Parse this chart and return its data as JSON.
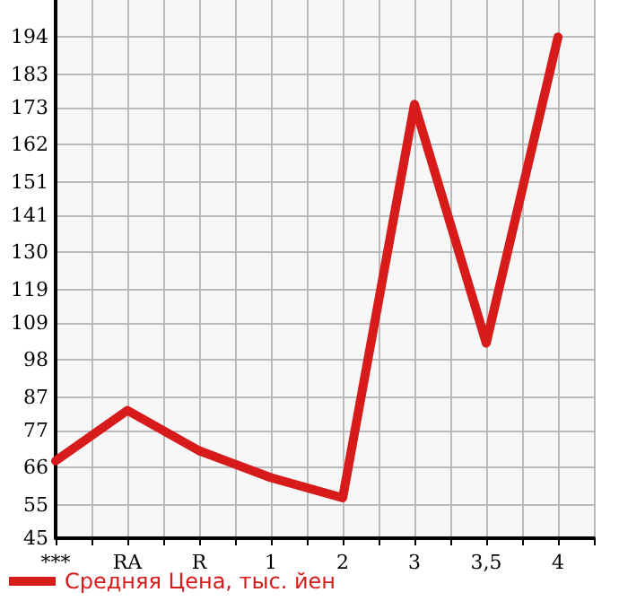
{
  "chart_data": {
    "type": "line",
    "categories": [
      "***",
      "RA",
      "R",
      "1",
      "2",
      "3",
      "3,5",
      "4"
    ],
    "series": [
      {
        "name": "Средняя Цена, тыс. йен",
        "color": "#d71a1a",
        "values": [
          68,
          83,
          71,
          63,
          57,
          174,
          103,
          194
        ]
      }
    ],
    "ylim": [
      45,
      205
    ],
    "yticks": [
      45,
      55,
      66,
      77,
      87,
      98,
      109,
      119,
      130,
      141,
      151,
      162,
      173,
      183,
      194
    ],
    "grid": true,
    "legend": "bottom left",
    "marker": "none",
    "line_style": "solid"
  }
}
